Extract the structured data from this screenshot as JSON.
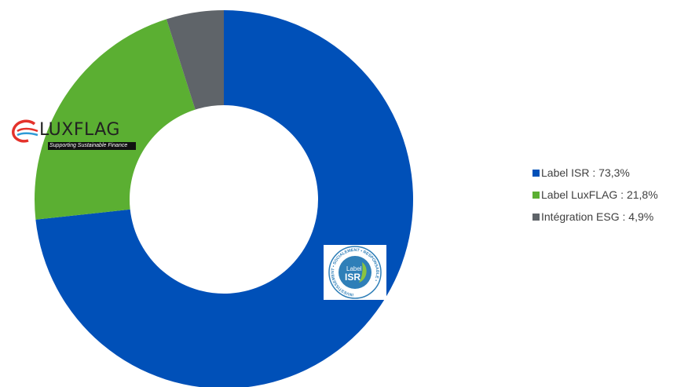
{
  "chart_data": {
    "type": "pie",
    "donut": true,
    "slices": [
      {
        "name": "Label ISR",
        "value": 73.3,
        "color": "#0050B8",
        "legend": "Label ISR : 73,3%"
      },
      {
        "name": "Label LuxFLAG",
        "value": 21.8,
        "color": "#5BAF32",
        "legend": "Label LuxFLAG : 21,8%"
      },
      {
        "name": "Intégration ESG",
        "value": 4.9,
        "color": "#5F6469",
        "legend": "Intégration ESG : 4,9%"
      }
    ],
    "legend_placement": "right"
  },
  "logos": {
    "luxflag": {
      "name": "LUXFLAG",
      "tagline": "Supporting Sustainable Finance"
    },
    "isr": {
      "label": "Label",
      "name": "ISR",
      "ring_text": "INVESTISSEMENT • SOCIALEMENT • RESPONSABLE •"
    }
  }
}
